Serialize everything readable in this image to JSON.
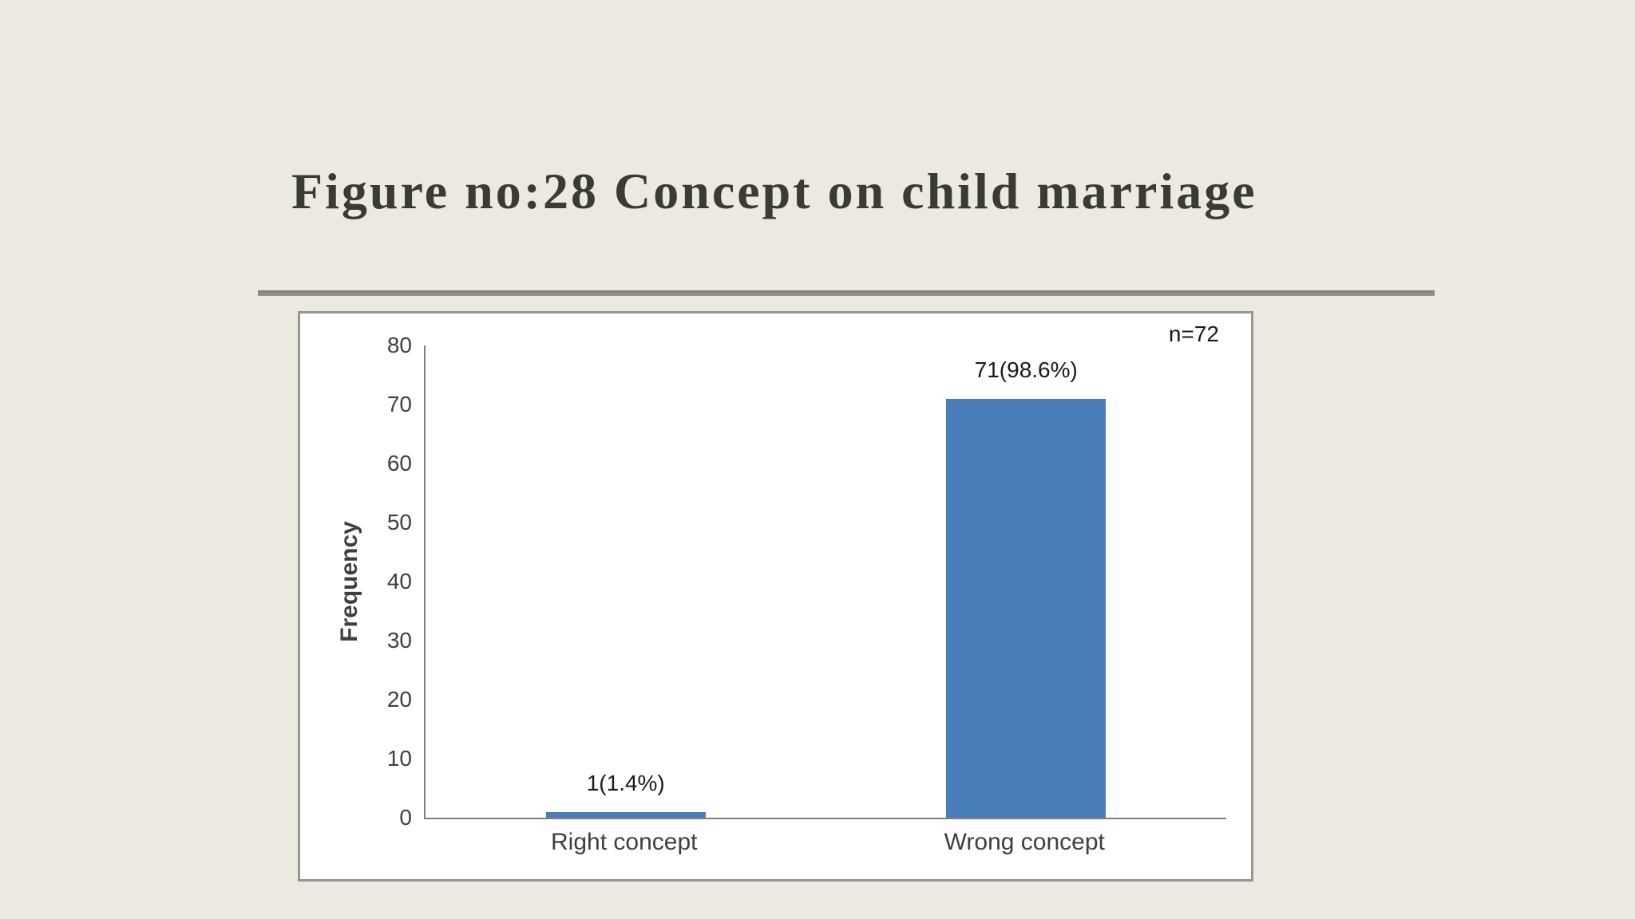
{
  "slide": {
    "title": "Figure no:28 Concept on child marriage"
  },
  "chart_data": {
    "type": "bar",
    "title": "Figure no:28 Concept on child marriage",
    "categories": [
      "Right concept",
      "Wrong concept"
    ],
    "values": [
      1,
      71
    ],
    "bar_labels": [
      "1(1.4%)",
      "71(98.6%)"
    ],
    "xlabel": "",
    "ylabel": "Frequency",
    "ylim": [
      0,
      80
    ],
    "yticks": [
      0,
      10,
      20,
      30,
      40,
      50,
      60,
      70,
      80
    ],
    "annotation": "n=72",
    "sample_size": 72,
    "grid": false,
    "legend": "none",
    "bar_color": "#4A7EBB"
  },
  "colors": {
    "background": "#ECE9E0",
    "title_text": "#3C3A35",
    "divider": "#8A887D",
    "panel_border": "#96958E",
    "panel_background": "#FFFFFF",
    "axis_line": "#7F7F7F",
    "chart_text": "#3F3F3F",
    "bar_fill": "#4A7EBB"
  }
}
